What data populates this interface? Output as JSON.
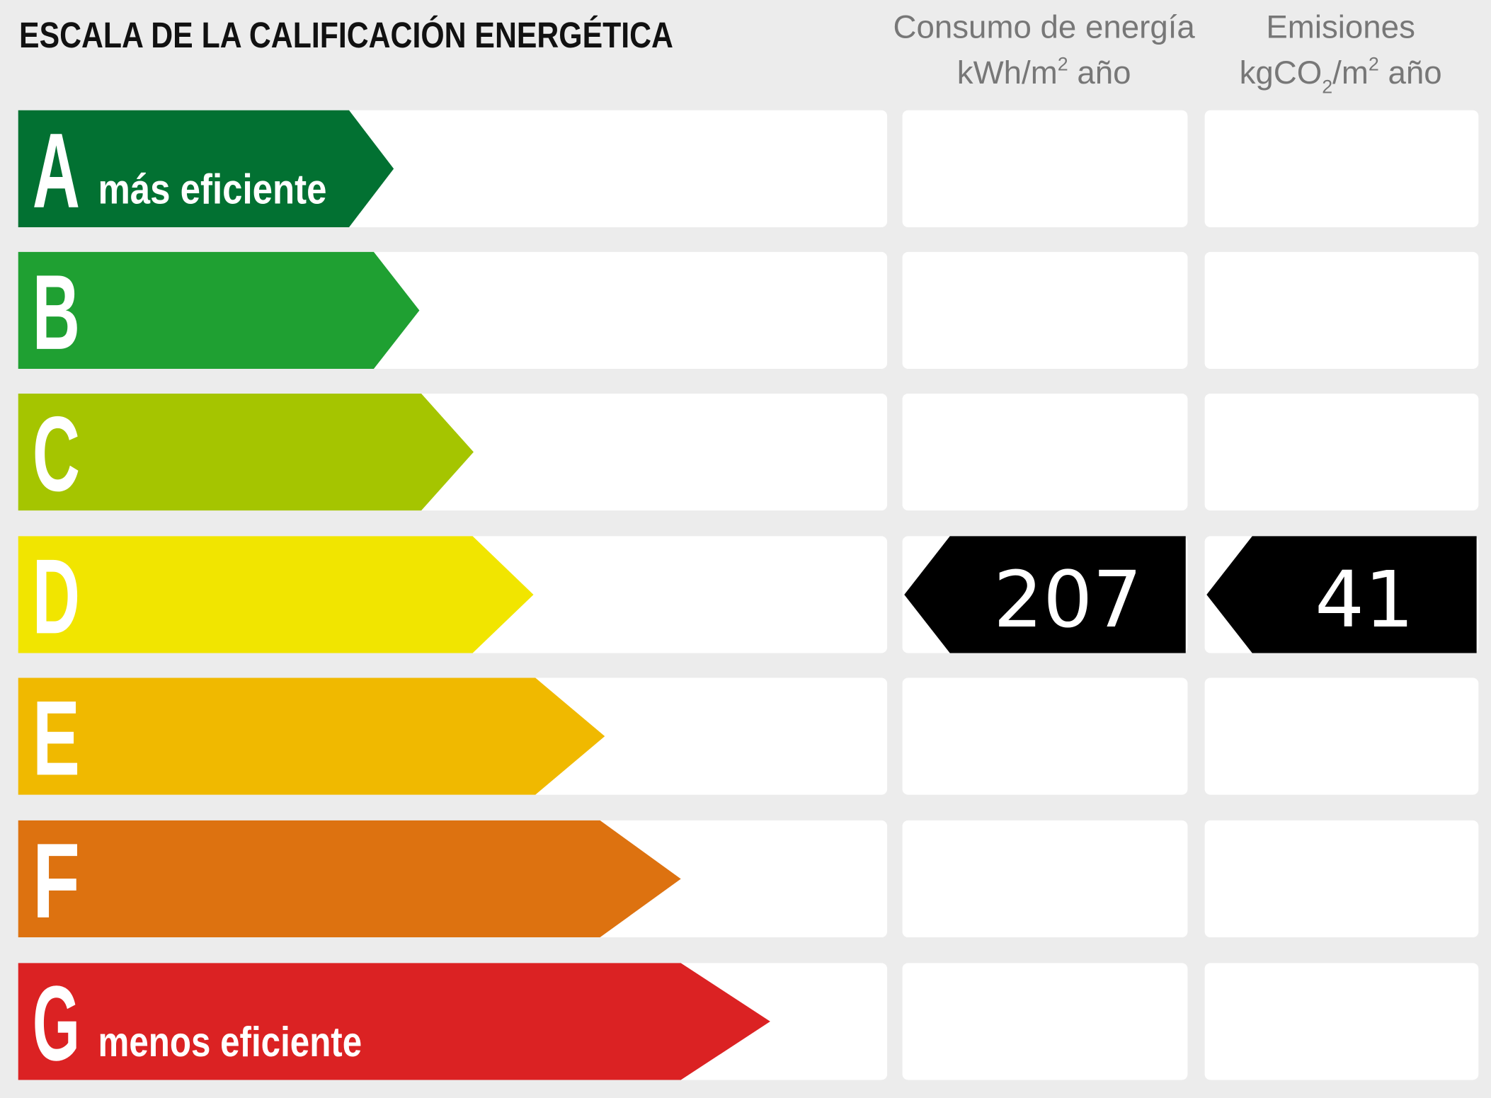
{
  "title": "ESCALA DE LA CALIFICACIÓN ENERGÉTICA",
  "columns": [
    {
      "line1": "Consumo de energía",
      "unit": [
        {
          "text": "kWh/m"
        },
        {
          "text": "2",
          "pos": "sup"
        },
        {
          "text": " año"
        }
      ]
    },
    {
      "line1": "Emisiones",
      "unit": [
        {
          "text": "kgCO"
        },
        {
          "text": "2",
          "pos": "sub"
        },
        {
          "text": "/m"
        },
        {
          "text": "2",
          "pos": "sup"
        },
        {
          "text": " año"
        }
      ]
    }
  ],
  "rows": [
    {
      "letter": "A",
      "label": "más eficiente",
      "color": "#027132"
    },
    {
      "letter": "B",
      "label": null,
      "color": "#1fa032"
    },
    {
      "letter": "C",
      "label": null,
      "color": "#a5c500"
    },
    {
      "letter": "D",
      "label": null,
      "color": "#f1e500"
    },
    {
      "letter": "E",
      "label": null,
      "color": "#f0b900"
    },
    {
      "letter": "F",
      "label": null,
      "color": "#dd7210"
    },
    {
      "letter": "G",
      "label": "menos eficiente",
      "color": "#db2223"
    }
  ],
  "rating": {
    "row": 3,
    "values": [
      207,
      41
    ]
  }
}
